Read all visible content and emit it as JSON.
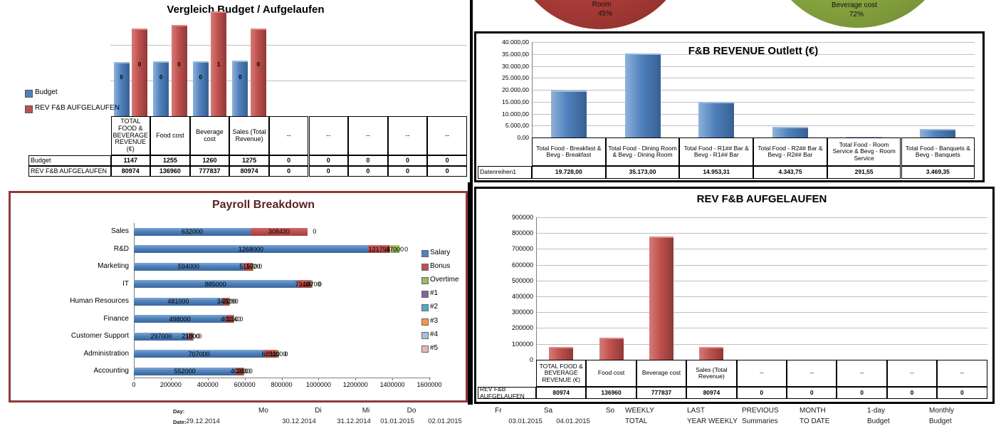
{
  "chart_data": [
    {
      "id": "vergleich",
      "type": "bar",
      "title": "Vergleich Budget / Aufgelaufen",
      "categories": [
        "TOTAL FOOD & BEVERAGE REVENUE (€)",
        "Food cost",
        "Beverage cost",
        "Sales (Total Revenue)",
        "--",
        "--",
        "--",
        "--",
        "--"
      ],
      "series": [
        {
          "name": "Budget",
          "color": "#4F81BD",
          "values": [
            1147,
            1255,
            1260,
            1275,
            0,
            0,
            0,
            0,
            0
          ]
        },
        {
          "name": "REV F&B AUFGELAUFEN",
          "color": "#C0504D",
          "values": [
            80974,
            136960,
            777837,
            80974,
            0,
            0,
            0,
            0,
            0
          ]
        }
      ],
      "axis": "log10",
      "grid": true,
      "legend_position": "left",
      "bar_value_labels": {
        "budget": [
          "0",
          "0",
          "0",
          "0"
        ],
        "rev": [
          "0",
          "0",
          "1",
          "0"
        ]
      }
    },
    {
      "id": "pie-left",
      "type": "pie",
      "partial_visible": true,
      "slices": [
        {
          "label": "Room",
          "pct": 45,
          "pct_label": "45%",
          "color": "#A03532"
        }
      ]
    },
    {
      "id": "pie-right",
      "type": "pie",
      "partial_visible": true,
      "slices": [
        {
          "label": "Beverage cost",
          "pct": 72,
          "pct_label": "72%",
          "color": "#84A13E"
        }
      ]
    },
    {
      "id": "outlett",
      "type": "bar",
      "title": "F&B REVENUE Outlett (€)",
      "categories": [
        "Total  Food - Breakfast &  Bevg - Breakfast",
        "Total  Food - Dining Room &  Bevg - Dining Room",
        "Total  Food - R1## Bar &  Bevg - R1## Bar",
        "Total  Food - R2## Bar &  Bevg - R2## Bar",
        "Total  Food - Room Service &  Bevg - Room Service",
        "Total  Food - Banquets &  Bevg - Banquets"
      ],
      "series": [
        {
          "name": "Datenreihen1",
          "color": "#4F81BD",
          "values": [
            19728.0,
            35173.0,
            14953.31,
            4343.75,
            291.55,
            3469.35
          ]
        }
      ],
      "ylim": [
        0,
        40000
      ],
      "ytick_step": 5000,
      "grid": true
    },
    {
      "id": "rev-aufgelaufen",
      "type": "bar",
      "title": "REV F&B AUFGELAUFEN",
      "categories": [
        "TOTAL FOOD & BEVERAGE REVENUE (€)",
        "Food cost",
        "Beverage cost",
        "Sales (Total Revenue)",
        "--",
        "--",
        "--",
        "--",
        "--"
      ],
      "series": [
        {
          "name": "REV F&B AUFGELAUFEN",
          "color": "#C0504D",
          "values": [
            80974,
            136960,
            777837,
            80974,
            0,
            0,
            0,
            0,
            0
          ]
        }
      ],
      "ylim": [
        0,
        900000
      ],
      "ytick_step": 100000,
      "grid": true
    },
    {
      "id": "payroll",
      "type": "bar-horizontal-stacked",
      "title": "Payroll Breakdown",
      "categories": [
        "Sales",
        "R&D",
        "Marketing",
        "IT",
        "Human Resources",
        "Finance",
        "Customer Support",
        "Administration",
        "Accounting"
      ],
      "series": [
        {
          "name": "Salary",
          "color": "#4F81BD",
          "values": [
            632000,
            1268000,
            594000,
            885000,
            481000,
            498000,
            297000,
            707000,
            552000
          ]
        },
        {
          "name": "Bonus",
          "color": "#C0504D",
          "values": [
            308430,
            121793,
            51570,
            73480,
            34820,
            40250,
            21800,
            68500,
            40280
          ]
        },
        {
          "name": "Overtime",
          "color": "#9BBB59",
          "values": [
            0,
            47000,
            1020,
            10700,
            2100,
            5140,
            1000,
            11100,
            2630
          ]
        },
        {
          "name": "#1",
          "color": "#8064A2",
          "values": [
            0,
            0,
            0,
            0,
            0,
            0,
            0,
            0,
            0
          ]
        },
        {
          "name": "#2",
          "color": "#4BACC6",
          "values": [
            0,
            0,
            0,
            0,
            0,
            0,
            0,
            0,
            0
          ]
        },
        {
          "name": "#3",
          "color": "#F79646",
          "values": [
            0,
            0,
            0,
            0,
            0,
            0,
            0,
            0,
            0
          ]
        },
        {
          "name": "#4",
          "color": "#A7BFDE",
          "values": [
            0,
            0,
            0,
            0,
            0,
            0,
            0,
            0,
            0
          ]
        },
        {
          "name": "#5",
          "color": "#E5B8B7",
          "values": [
            0,
            0,
            0,
            0,
            0,
            0,
            0,
            0,
            0
          ]
        }
      ],
      "xlim": [
        0,
        1600000
      ],
      "xtick_step": 200000,
      "legend_position": "right",
      "data_labels": true,
      "zero_label": "0"
    }
  ],
  "panels": {
    "vergleich": {
      "table": {
        "columns": [
          "TOTAL FOOD & BEVERAGE REVENUE (€)",
          "Food cost",
          "Beverage cost",
          "Sales (Total Revenue)",
          "--",
          "--",
          "--",
          "--",
          "--"
        ],
        "rows": [
          {
            "label": "Budget",
            "values": [
              "1147",
              "1255",
              "1260",
              "1275",
              "0",
              "0",
              "0",
              "0",
              "0"
            ]
          },
          {
            "label": "REV F&B AUFGELAUFEN",
            "values": [
              "80974",
              "136960",
              "777837",
              "80974",
              "0",
              "0",
              "0",
              "0",
              "0"
            ]
          }
        ]
      }
    },
    "outlett": {
      "y_ticks": [
        "40.000,00",
        "35.000,00",
        "30.000,00",
        "25.000,00",
        "20.000,00",
        "15.000,00",
        "10.000,00",
        "5.000,00",
        "0,00"
      ],
      "table": {
        "row_label": "Datenreihen1",
        "values": [
          "19.728,00",
          "35.173,00",
          "14.953,31",
          "4.343,75",
          "291,55",
          "3.469,35"
        ]
      }
    },
    "rev": {
      "y_ticks": [
        "900000",
        "800000",
        "700000",
        "600000",
        "500000",
        "400000",
        "300000",
        "200000",
        "100000",
        "0"
      ],
      "table": {
        "rows": [
          {
            "label": "REV F&B AUFGELAUFEN",
            "values": [
              "80974",
              "136960",
              "777837",
              "80974",
              "0",
              "0",
              "0",
              "0",
              "0"
            ]
          }
        ]
      }
    },
    "payroll": {
      "x_ticks": [
        "0",
        "200000",
        "400000",
        "600000",
        "800000",
        "1000000",
        "1200000",
        "1400000",
        "1600000"
      ]
    }
  },
  "footer": {
    "day_label": "Day:",
    "date_label": "Date:",
    "days": [
      "Mo",
      "Di",
      "Mi",
      "Do",
      "Fr",
      "Sa",
      "So"
    ],
    "dates": [
      "29.12.2014",
      "30.12.2014",
      "31.12.2014",
      "01.01.2015",
      "02.01.2015",
      "03.01.2015",
      "04.01.2015"
    ],
    "summaries": [
      [
        "WEEKLY",
        "TOTAL"
      ],
      [
        "LAST",
        "YEAR WEEKLY"
      ],
      [
        "PREVIOUS",
        "Summaries"
      ],
      [
        "MONTH",
        "TO DATE"
      ],
      [
        "1-day",
        "Budget"
      ],
      [
        "Monthly",
        "Budget"
      ]
    ]
  },
  "colors": {
    "excel_blue": "#4F81BD",
    "excel_red": "#C0504D",
    "excel_green": "#9BBB59",
    "excel_purple": "#8064A2",
    "excel_teal": "#4BACC6",
    "excel_orange": "#F79646",
    "excel_lightblue": "#A7BFDE",
    "excel_pink": "#E5B8B7",
    "pie_red": "#A03532",
    "pie_green": "#84A13E",
    "panel_border_black": "#000000",
    "panel_border_maroon": "#8E3B39",
    "gridline": "#BFBFBF"
  }
}
